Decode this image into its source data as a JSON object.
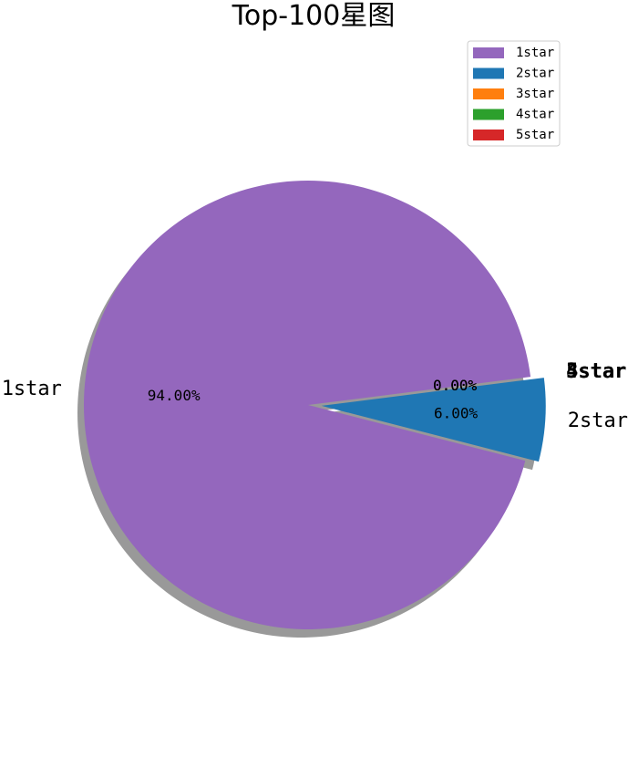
{
  "chart_data": {
    "type": "pie",
    "title": "Top-100星图",
    "categories": [
      "1star",
      "2star",
      "3star",
      "4star",
      "5star"
    ],
    "values": [
      94.0,
      6.0,
      0.0,
      0.0,
      0.0
    ],
    "percent_labels": [
      "94.00%",
      "6.00%",
      "0.00%",
      "0.00%",
      "0.00%"
    ],
    "colors": [
      "#9467bd",
      "#1f77b4",
      "#ff7f0e",
      "#2ca02c",
      "#d62728"
    ],
    "explode": [
      0,
      0.06,
      0.06,
      0.06,
      0.06
    ],
    "shadow": true,
    "legend": {
      "placement": "top-right",
      "entries": [
        "1star",
        "2star",
        "3star",
        "4star",
        "5star"
      ]
    }
  }
}
